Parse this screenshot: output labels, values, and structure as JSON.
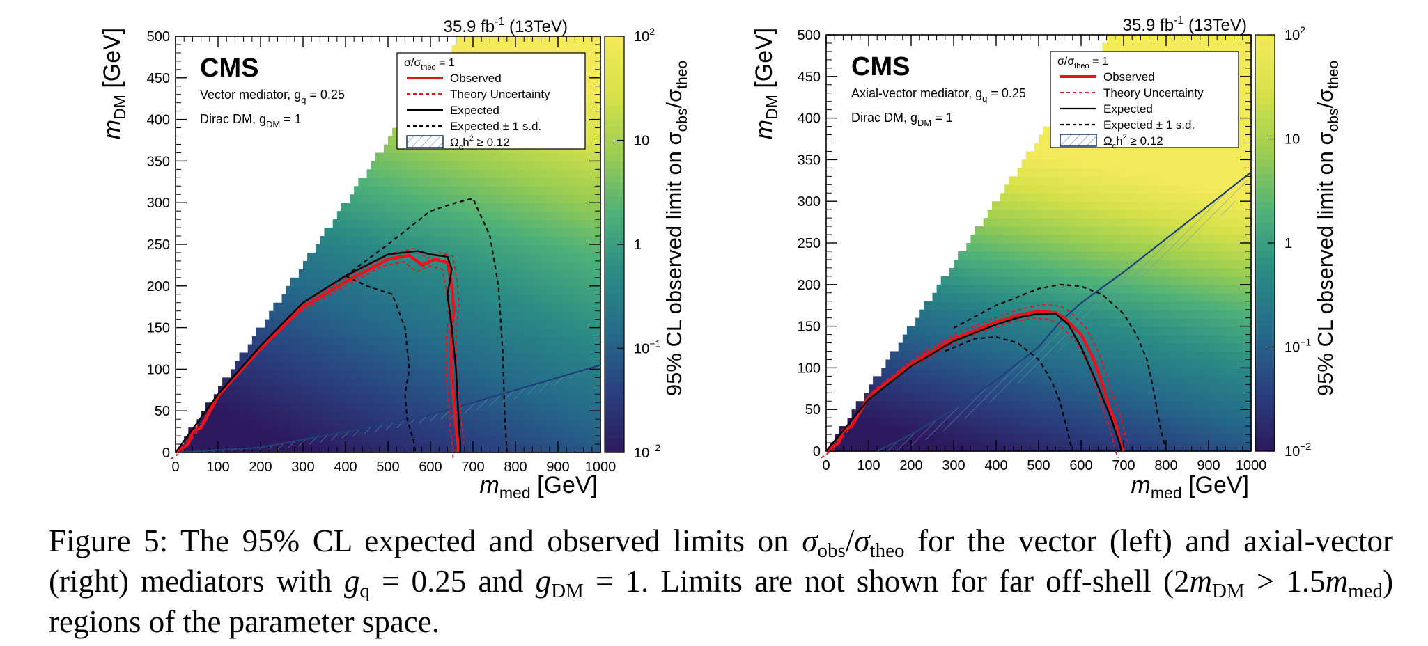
{
  "figure_label": "Figure 5:",
  "caption": {
    "t1": "The 95% CL expected and observed limits on",
    "sigma": "σ",
    "obs": "obs",
    "slash": "/",
    "theo": "theo",
    "t2": "for the vector (left) and axial-vector (right) mediators with",
    "g": "g",
    "q": "q",
    "eq1": "= 0.25 and",
    "DM": "DM",
    "eq2": "= 1. Limits are not shown for far off-shell",
    "paren_open": "(2",
    "m": "m",
    "gt": "> 1.5",
    "med": "med",
    "t3": ") regions of the parameter space."
  },
  "panels": [
    {
      "cms_label": "CMS",
      "mediator_text": "Vector mediator, g",
      "mediator_sub": "q",
      "mediator_value": " = 0.25",
      "dm_text": "Dirac DM, g",
      "dm_sub": "DM",
      "dm_value": " = 1",
      "lumi": "35.9 fb",
      "lumi_sup": "-1",
      "lumi_energy": " (13TeV)"
    },
    {
      "cms_label": "CMS",
      "mediator_text": "Axial-vector mediator, g",
      "mediator_sub": "q",
      "mediator_value": " = 0.25",
      "dm_text": "Dirac DM, g",
      "dm_sub": "DM",
      "dm_value": " = 1",
      "lumi": "35.9 fb",
      "lumi_sup": "-1",
      "lumi_energy": " (13TeV)"
    }
  ],
  "legend": {
    "header": "σ/σ",
    "header_sub": "theo",
    "header_value": " = 1",
    "observed": "Observed",
    "theory_unc": "Theory Uncertainty",
    "expected": "Expected",
    "expected_1sd": "Expected ± 1 s.d.",
    "relic": "Ω",
    "relic_sub": "c",
    "relic_rest": "h",
    "relic_sup": "2",
    "relic_value": " ≥ 0.12"
  },
  "axes": {
    "x_label": "m",
    "x_label_sub": "med",
    "x_label_unit": " [GeV]",
    "y_label": "m",
    "y_label_sub": "DM",
    "y_label_unit": " [GeV]",
    "x_ticks": [
      "0",
      "100",
      "200",
      "300",
      "400",
      "500",
      "600",
      "700",
      "800",
      "900",
      "1000"
    ],
    "y_ticks": [
      "0",
      "50",
      "100",
      "150",
      "200",
      "250",
      "300",
      "350",
      "400",
      "450",
      "500"
    ],
    "z_label": "95% CL observed limit on σ",
    "z_label_obs": "obs",
    "z_label_theo": "theo",
    "z_ticks": [
      {
        "base": "10",
        "exp": "2",
        "value": 100
      },
      {
        "base": "10",
        "exp": "",
        "value": 10
      },
      {
        "base": "1",
        "exp": "",
        "value": 1
      },
      {
        "base": "10",
        "exp": "−1",
        "value": 0.1
      },
      {
        "base": "10",
        "exp": "−2",
        "value": 0.01
      }
    ]
  },
  "colors": {
    "observed": "#e8141c",
    "theory": "#e8141c",
    "expected": "#000000",
    "relic": "#1f3f7a",
    "colormap": [
      "#2d1a5e",
      "#2a3f7f",
      "#256a8a",
      "#2a8a85",
      "#4cb07a",
      "#9acd52",
      "#d6e14a",
      "#f3ea5a"
    ]
  },
  "chart_data": [
    {
      "type": "heatmap",
      "title": "",
      "xlabel": "m_med [GeV]",
      "ylabel": "m_DM [GeV]",
      "zlabel": "95% CL observed limit on σ_obs/σ_theo",
      "xlim": [
        0,
        1000
      ],
      "ylim": [
        0,
        500
      ],
      "zlim": [
        0.01,
        100
      ],
      "zscale": "log",
      "legend_position": "top-right",
      "series": [
        {
          "name": "Observed",
          "x": [
            0,
            30,
            40,
            60,
            100,
            200,
            300,
            400,
            500,
            550,
            580,
            610,
            640,
            650,
            655,
            650,
            648,
            650,
            655,
            660,
            665,
            665
          ],
          "y": [
            0,
            10,
            25,
            30,
            68,
            125,
            175,
            205,
            232,
            237,
            225,
            232,
            228,
            200,
            170,
            150,
            120,
            90,
            60,
            30,
            10,
            0
          ]
        },
        {
          "name": "Expected",
          "x": [
            0,
            100,
            200,
            300,
            400,
            500,
            570,
            600,
            640,
            650,
            640,
            650,
            660,
            665,
            670,
            670
          ],
          "y": [
            0,
            70,
            128,
            180,
            212,
            238,
            242,
            238,
            235,
            220,
            190,
            150,
            100,
            50,
            10,
            0
          ]
        },
        {
          "name": "Expected ± 1 s.d. (outer)",
          "x": [
            400,
            500,
            600,
            660,
            700,
            740,
            760,
            770,
            775,
            780
          ],
          "y": [
            212,
            250,
            290,
            300,
            305,
            260,
            200,
            120,
            40,
            0
          ]
        },
        {
          "name": "Expected ± 1 s.d. (inner)",
          "x": [
            400,
            450,
            510,
            540,
            550,
            540,
            545,
            560,
            565
          ],
          "y": [
            212,
            200,
            190,
            150,
            100,
            70,
            40,
            15,
            0
          ]
        },
        {
          "name": "Ω_c h² ≥ 0.12",
          "x": [
            0,
            200,
            400,
            600,
            800,
            1000
          ],
          "y": [
            0,
            6,
            25,
            45,
            75,
            105
          ]
        }
      ]
    },
    {
      "type": "heatmap",
      "title": "",
      "xlabel": "m_med [GeV]",
      "ylabel": "m_DM [GeV]",
      "zlabel": "95% CL observed limit on σ_obs/σ_theo",
      "xlim": [
        0,
        1000
      ],
      "ylim": [
        0,
        500
      ],
      "zlim": [
        0.01,
        100
      ],
      "zscale": "log",
      "legend_position": "top-right",
      "series": [
        {
          "name": "Observed",
          "x": [
            0,
            30,
            40,
            60,
            100,
            200,
            300,
            400,
            450,
            500,
            540,
            560,
            600,
            630,
            650,
            665,
            680,
            690,
            695,
            700
          ],
          "y": [
            0,
            10,
            25,
            30,
            65,
            105,
            135,
            155,
            163,
            168,
            166,
            160,
            140,
            110,
            80,
            55,
            35,
            15,
            5,
            0
          ]
        },
        {
          "name": "Expected",
          "x": [
            0,
            100,
            200,
            300,
            400,
            450,
            500,
            540,
            570,
            600,
            630,
            650,
            670,
            680,
            690,
            695
          ],
          "y": [
            0,
            62,
            102,
            132,
            152,
            160,
            165,
            165,
            152,
            125,
            90,
            65,
            40,
            25,
            10,
            0
          ]
        },
        {
          "name": "Expected ± 1 s.d. (outer)",
          "x": [
            300,
            400,
            500,
            550,
            600,
            650,
            700,
            730,
            755,
            770,
            780,
            790,
            800
          ],
          "y": [
            148,
            175,
            195,
            200,
            198,
            188,
            165,
            140,
            110,
            75,
            45,
            20,
            0
          ]
        },
        {
          "name": "Expected ± 1 s.d. (inner)",
          "x": [
            280,
            350,
            400,
            450,
            500,
            530,
            550,
            560,
            570,
            575,
            580
          ],
          "y": [
            120,
            135,
            137,
            130,
            110,
            85,
            60,
            40,
            20,
            8,
            0
          ]
        },
        {
          "name": "Ω_c h² ≥ 0.12",
          "x": [
            120,
            200,
            300,
            400,
            500,
            550,
            600,
            700,
            800,
            900,
            1000
          ],
          "y": [
            0,
            20,
            50,
            85,
            125,
            155,
            178,
            215,
            255,
            295,
            335
          ]
        }
      ]
    }
  ]
}
